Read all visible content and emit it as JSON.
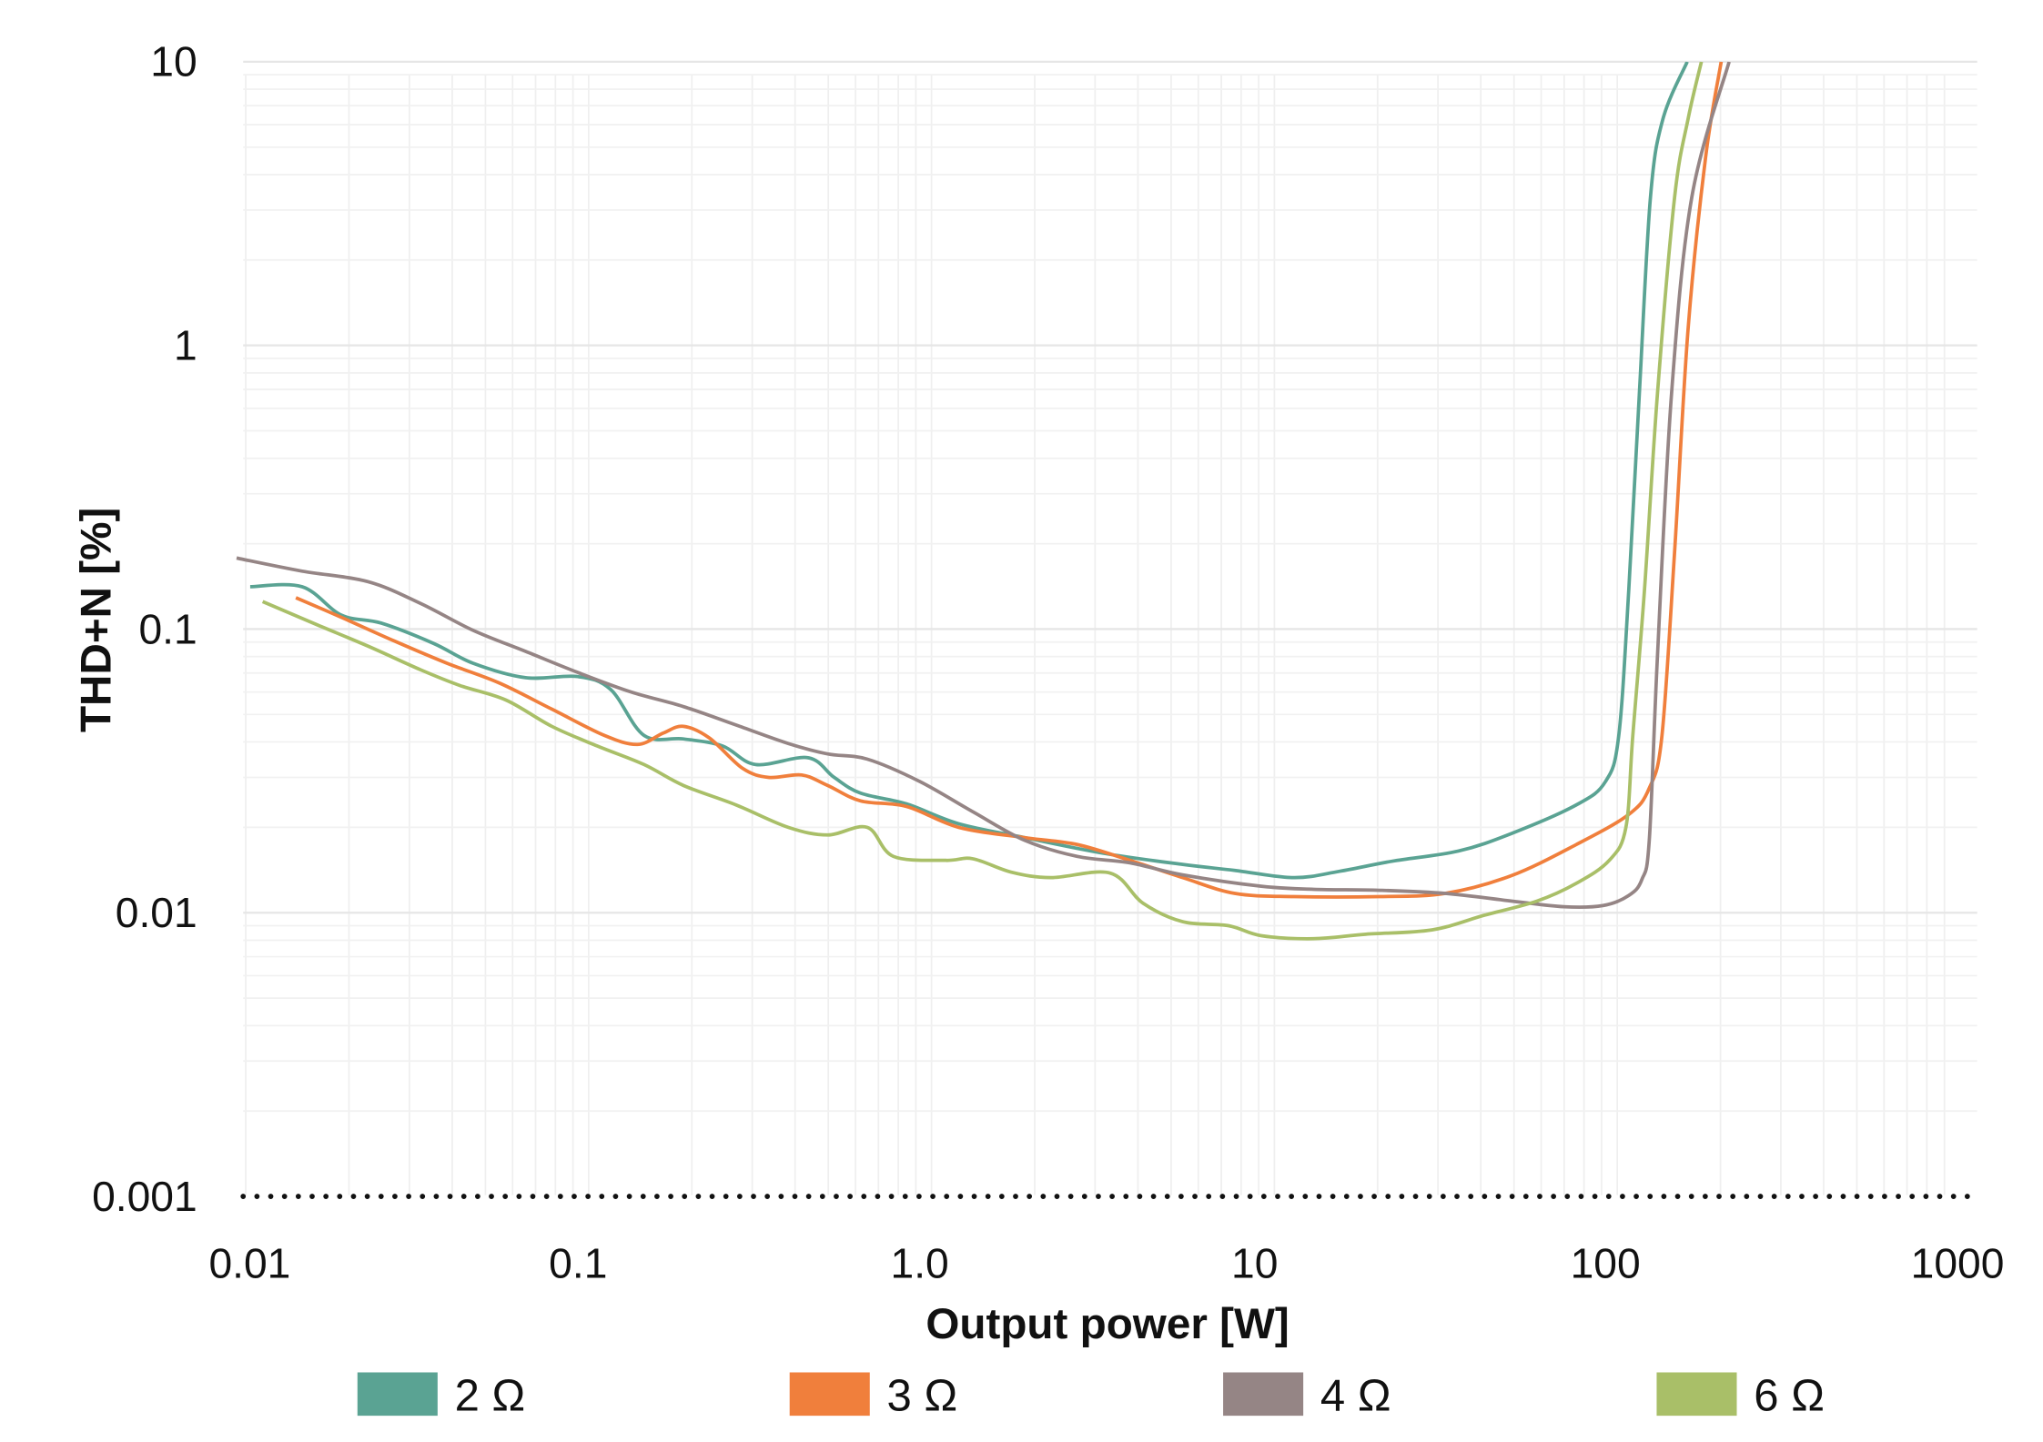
{
  "chart_data": {
    "type": "line",
    "title": "",
    "xlabel": "Output power [W]",
    "ylabel": "THD+N [%]",
    "xscale": "log",
    "yscale": "log",
    "xlim": [
      0.01,
      1000
    ],
    "ylim": [
      0.001,
      10
    ],
    "grid": true,
    "legend_position": "bottom",
    "x_ticks": [
      {
        "value": 0.01,
        "label": "0.01"
      },
      {
        "value": 0.1,
        "label": "0.1"
      },
      {
        "value": 1,
        "label": "1.0"
      },
      {
        "value": 10,
        "label": "10"
      },
      {
        "value": 100,
        "label": "100"
      },
      {
        "value": 1000,
        "label": "1000"
      }
    ],
    "y_ticks": [
      {
        "value": 10,
        "label": "10"
      },
      {
        "value": 1,
        "label": "1"
      },
      {
        "value": 0.1,
        "label": "0.1"
      },
      {
        "value": 0.01,
        "label": "0.01"
      },
      {
        "value": 0.001,
        "label": "0.001"
      }
    ],
    "series": [
      {
        "name": "2 Ω",
        "color": "#5aa393",
        "x": [
          0.0103,
          0.0146,
          0.019,
          0.0248,
          0.0353,
          0.046,
          0.0655,
          0.093,
          0.116,
          0.145,
          0.189,
          0.246,
          0.307,
          0.436,
          0.52,
          0.621,
          0.845,
          1.2,
          1.87,
          3.18,
          5.4,
          7.67,
          11.4,
          15.5,
          22.1,
          34.4,
          49,
          76,
          92.4,
          101,
          108,
          116,
          125,
          136,
          160
        ],
        "y": [
          0.141,
          0.141,
          0.112,
          0.105,
          0.089,
          0.0758,
          0.0674,
          0.068,
          0.0612,
          0.0422,
          0.041,
          0.0387,
          0.0333,
          0.0352,
          0.03,
          0.0264,
          0.0242,
          0.0206,
          0.0184,
          0.0162,
          0.0148,
          0.0141,
          0.0133,
          0.014,
          0.0152,
          0.0165,
          0.019,
          0.024,
          0.029,
          0.042,
          0.136,
          0.675,
          3.33,
          6.3,
          10
        ]
      },
      {
        "name": "3 Ω",
        "color": "#f07f3c",
        "x": [
          0.014,
          0.019,
          0.0271,
          0.0386,
          0.0548,
          0.0781,
          0.111,
          0.139,
          0.165,
          0.189,
          0.225,
          0.281,
          0.335,
          0.418,
          0.498,
          0.621,
          0.845,
          1.2,
          1.87,
          2.66,
          3.79,
          5.4,
          7.67,
          11.4,
          20.3,
          31.5,
          49,
          76,
          108,
          124,
          135,
          147,
          161,
          181,
          201
        ],
        "y": [
          0.129,
          0.11,
          0.0908,
          0.0758,
          0.0646,
          0.0522,
          0.0422,
          0.0392,
          0.043,
          0.0454,
          0.0413,
          0.0323,
          0.03,
          0.0306,
          0.0281,
          0.0248,
          0.0237,
          0.02,
          0.0184,
          0.0174,
          0.0153,
          0.0133,
          0.0117,
          0.0114,
          0.0114,
          0.0117,
          0.0135,
          0.0174,
          0.0222,
          0.0275,
          0.042,
          0.1875,
          1.15,
          4.6,
          10
        ]
      },
      {
        "name": "4 Ω",
        "color": "#958585",
        "x": [
          0.0094,
          0.0146,
          0.0227,
          0.0324,
          0.046,
          0.0655,
          0.093,
          0.133,
          0.189,
          0.269,
          0.382,
          0.498,
          0.649,
          0.925,
          1.32,
          1.87,
          2.66,
          3.79,
          5.4,
          9.16,
          13.0,
          20.3,
          31.5,
          49,
          69.7,
          90.8,
          108,
          118,
          124,
          131,
          144,
          165,
          212
        ],
        "y": [
          0.178,
          0.16,
          0.147,
          0.123,
          0.099,
          0.0834,
          0.0703,
          0.06,
          0.0533,
          0.0459,
          0.0395,
          0.0363,
          0.0348,
          0.029,
          0.0227,
          0.018,
          0.0158,
          0.015,
          0.0136,
          0.0124,
          0.0121,
          0.012,
          0.0117,
          0.011,
          0.0105,
          0.0106,
          0.0115,
          0.0131,
          0.018,
          0.08,
          0.675,
          3.33,
          10
        ]
      },
      {
        "name": "6 Ω",
        "color": "#a9bf68",
        "x": [
          0.0112,
          0.016,
          0.0227,
          0.0324,
          0.0422,
          0.0574,
          0.0781,
          0.106,
          0.145,
          0.189,
          0.269,
          0.382,
          0.498,
          0.649,
          0.774,
          1.1,
          1.32,
          1.71,
          2.23,
          3.32,
          4.14,
          5.4,
          7.35,
          9.16,
          13.0,
          18.5,
          28.8,
          41,
          58.4,
          76,
          94.8,
          106,
          111,
          120,
          131,
          147,
          161,
          176
        ],
        "y": [
          0.125,
          0.104,
          0.0871,
          0.0718,
          0.0632,
          0.0562,
          0.0454,
          0.0387,
          0.0333,
          0.0281,
          0.024,
          0.02,
          0.0188,
          0.02,
          0.0158,
          0.0153,
          0.0155,
          0.0139,
          0.0133,
          0.0138,
          0.0108,
          0.0093,
          0.009,
          0.0083,
          0.0081,
          0.0084,
          0.0087,
          0.0098,
          0.011,
          0.0127,
          0.0153,
          0.02,
          0.042,
          0.136,
          0.675,
          3.33,
          6.3,
          10
        ]
      }
    ]
  }
}
